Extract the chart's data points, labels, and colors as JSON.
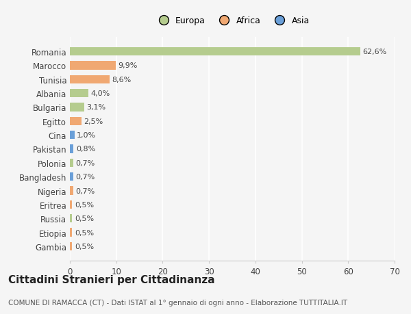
{
  "categories": [
    "Romania",
    "Marocco",
    "Tunisia",
    "Albania",
    "Bulgaria",
    "Egitto",
    "Cina",
    "Pakistan",
    "Polonia",
    "Bangladesh",
    "Nigeria",
    "Eritrea",
    "Russia",
    "Etiopia",
    "Gambia"
  ],
  "values": [
    62.6,
    9.9,
    8.6,
    4.0,
    3.1,
    2.5,
    1.0,
    0.8,
    0.7,
    0.7,
    0.7,
    0.5,
    0.5,
    0.5,
    0.5
  ],
  "labels": [
    "62,6%",
    "9,9%",
    "8,6%",
    "4,0%",
    "3,1%",
    "2,5%",
    "1,0%",
    "0,8%",
    "0,7%",
    "0,7%",
    "0,7%",
    "0,5%",
    "0,5%",
    "0,5%",
    "0,5%"
  ],
  "continents": [
    "Europa",
    "Africa",
    "Africa",
    "Europa",
    "Europa",
    "Africa",
    "Asia",
    "Asia",
    "Europa",
    "Asia",
    "Africa",
    "Africa",
    "Europa",
    "Africa",
    "Africa"
  ],
  "continent_colors": {
    "Europa": "#b5cc8e",
    "Africa": "#f0a872",
    "Asia": "#6a9fd8"
  },
  "legend_items": [
    "Europa",
    "Africa",
    "Asia"
  ],
  "legend_colors": [
    "#b5cc8e",
    "#f0a872",
    "#6a9fd8"
  ],
  "xlim": [
    0,
    70
  ],
  "xticks": [
    0,
    10,
    20,
    30,
    40,
    50,
    60,
    70
  ],
  "title": "Cittadini Stranieri per Cittadinanza",
  "subtitle": "COMUNE DI RAMACCA (CT) - Dati ISTAT al 1° gennaio di ogni anno - Elaborazione TUTTITALIA.IT",
  "background_color": "#f5f5f5",
  "bar_height": 0.6,
  "label_fontsize": 8.0,
  "title_fontsize": 11,
  "subtitle_fontsize": 7.5,
  "ytick_fontsize": 8.5,
  "xtick_fontsize": 8.5
}
